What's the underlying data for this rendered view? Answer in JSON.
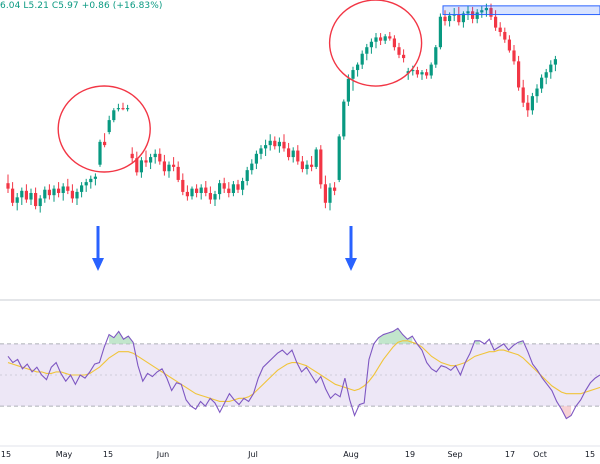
{
  "header": {
    "ohlc_readout": "6.04 L5.21 C5.97 +0.86 (+16.83%)"
  },
  "colors": {
    "up": "#089981",
    "down": "#f23645",
    "rsi_line": "#7e57c2",
    "rsi_ma": "#f0c43a",
    "rsi_band": "#ede7f6",
    "highlight_box": "#2962ff",
    "circle": "#f23645",
    "arrow": "#2962ff",
    "overbought_fill": "#b7e2c3",
    "oversold_fill": "#f6c9cc"
  },
  "chart_data": [
    {
      "type": "candlestick",
      "panel": "price",
      "y_range": [
        3.75,
        6.25
      ],
      "x_index_range": [
        0,
        129
      ],
      "candles": [
        {
          "o": 4.75,
          "h": 4.83,
          "l": 4.66,
          "c": 4.7
        },
        {
          "o": 4.7,
          "h": 4.76,
          "l": 4.54,
          "c": 4.57
        },
        {
          "o": 4.57,
          "h": 4.66,
          "l": 4.5,
          "c": 4.62
        },
        {
          "o": 4.62,
          "h": 4.71,
          "l": 4.55,
          "c": 4.68
        },
        {
          "o": 4.68,
          "h": 4.74,
          "l": 4.57,
          "c": 4.6
        },
        {
          "o": 4.6,
          "h": 4.7,
          "l": 4.55,
          "c": 4.66
        },
        {
          "o": 4.66,
          "h": 4.71,
          "l": 4.51,
          "c": 4.54
        },
        {
          "o": 4.54,
          "h": 4.64,
          "l": 4.48,
          "c": 4.61
        },
        {
          "o": 4.61,
          "h": 4.72,
          "l": 4.57,
          "c": 4.69
        },
        {
          "o": 4.69,
          "h": 4.74,
          "l": 4.6,
          "c": 4.64
        },
        {
          "o": 4.64,
          "h": 4.73,
          "l": 4.58,
          "c": 4.7
        },
        {
          "o": 4.7,
          "h": 4.76,
          "l": 4.62,
          "c": 4.66
        },
        {
          "o": 4.66,
          "h": 4.75,
          "l": 4.59,
          "c": 4.72
        },
        {
          "o": 4.72,
          "h": 4.79,
          "l": 4.65,
          "c": 4.68
        },
        {
          "o": 4.68,
          "h": 4.74,
          "l": 4.57,
          "c": 4.61
        },
        {
          "o": 4.61,
          "h": 4.7,
          "l": 4.55,
          "c": 4.67
        },
        {
          "o": 4.67,
          "h": 4.76,
          "l": 4.62,
          "c": 4.73
        },
        {
          "o": 4.73,
          "h": 4.79,
          "l": 4.67,
          "c": 4.76
        },
        {
          "o": 4.76,
          "h": 4.82,
          "l": 4.7,
          "c": 4.79
        },
        {
          "o": 4.79,
          "h": 4.84,
          "l": 4.73,
          "c": 4.81
        },
        {
          "o": 4.92,
          "h": 5.15,
          "l": 4.9,
          "c": 5.13
        },
        {
          "o": 5.13,
          "h": 5.21,
          "l": 5.08,
          "c": 5.1
        },
        {
          "o": 5.22,
          "h": 5.37,
          "l": 5.2,
          "c": 5.33
        },
        {
          "o": 5.33,
          "h": 5.44,
          "l": 5.31,
          "c": 5.42
        },
        {
          "o": 5.43,
          "h": 5.48,
          "l": 5.41,
          "c": 5.44
        },
        {
          "o": 5.44,
          "h": 5.49,
          "l": 5.42,
          "c": 5.43
        },
        {
          "o": 5.43,
          "h": 5.47,
          "l": 5.41,
          "c": 5.44
        },
        {
          "o": 5.02,
          "h": 5.08,
          "l": 4.93,
          "c": 4.98
        },
        {
          "o": 4.98,
          "h": 5.04,
          "l": 4.82,
          "c": 4.85
        },
        {
          "o": 4.85,
          "h": 4.99,
          "l": 4.8,
          "c": 4.96
        },
        {
          "o": 4.96,
          "h": 5.05,
          "l": 4.9,
          "c": 4.94
        },
        {
          "o": 4.94,
          "h": 5.02,
          "l": 4.88,
          "c": 4.99
        },
        {
          "o": 4.99,
          "h": 5.06,
          "l": 4.93,
          "c": 5.02
        },
        {
          "o": 5.02,
          "h": 5.07,
          "l": 4.92,
          "c": 4.95
        },
        {
          "o": 4.95,
          "h": 5.01,
          "l": 4.82,
          "c": 4.86
        },
        {
          "o": 4.86,
          "h": 4.95,
          "l": 4.8,
          "c": 4.92
        },
        {
          "o": 4.92,
          "h": 4.99,
          "l": 4.86,
          "c": 4.9
        },
        {
          "o": 4.9,
          "h": 4.95,
          "l": 4.76,
          "c": 4.78
        },
        {
          "o": 4.78,
          "h": 4.84,
          "l": 4.64,
          "c": 4.67
        },
        {
          "o": 4.67,
          "h": 4.73,
          "l": 4.59,
          "c": 4.63
        },
        {
          "o": 4.63,
          "h": 4.72,
          "l": 4.6,
          "c": 4.7
        },
        {
          "o": 4.7,
          "h": 4.74,
          "l": 4.62,
          "c": 4.66
        },
        {
          "o": 4.66,
          "h": 4.74,
          "l": 4.6,
          "c": 4.71
        },
        {
          "o": 4.71,
          "h": 4.77,
          "l": 4.63,
          "c": 4.66
        },
        {
          "o": 4.66,
          "h": 4.72,
          "l": 4.56,
          "c": 4.6
        },
        {
          "o": 4.6,
          "h": 4.68,
          "l": 4.54,
          "c": 4.65
        },
        {
          "o": 4.65,
          "h": 4.78,
          "l": 4.6,
          "c": 4.75
        },
        {
          "o": 4.75,
          "h": 4.8,
          "l": 4.66,
          "c": 4.7
        },
        {
          "o": 4.7,
          "h": 4.76,
          "l": 4.62,
          "c": 4.66
        },
        {
          "o": 4.66,
          "h": 4.77,
          "l": 4.63,
          "c": 4.74
        },
        {
          "o": 4.74,
          "h": 4.78,
          "l": 4.66,
          "c": 4.69
        },
        {
          "o": 4.69,
          "h": 4.8,
          "l": 4.64,
          "c": 4.77
        },
        {
          "o": 4.77,
          "h": 4.9,
          "l": 4.73,
          "c": 4.87
        },
        {
          "o": 4.87,
          "h": 4.97,
          "l": 4.83,
          "c": 4.93
        },
        {
          "o": 4.93,
          "h": 5.05,
          "l": 4.88,
          "c": 5.02
        },
        {
          "o": 5.02,
          "h": 5.1,
          "l": 4.97,
          "c": 5.07
        },
        {
          "o": 5.07,
          "h": 5.15,
          "l": 5.0,
          "c": 5.1
        },
        {
          "o": 5.1,
          "h": 5.2,
          "l": 5.05,
          "c": 5.14
        },
        {
          "o": 5.14,
          "h": 5.18,
          "l": 5.06,
          "c": 5.09
        },
        {
          "o": 5.09,
          "h": 5.17,
          "l": 5.03,
          "c": 5.13
        },
        {
          "o": 5.13,
          "h": 5.2,
          "l": 5.04,
          "c": 5.07
        },
        {
          "o": 5.07,
          "h": 5.12,
          "l": 4.96,
          "c": 4.99
        },
        {
          "o": 4.99,
          "h": 5.08,
          "l": 4.94,
          "c": 5.05
        },
        {
          "o": 5.05,
          "h": 5.1,
          "l": 4.92,
          "c": 4.95
        },
        {
          "o": 4.95,
          "h": 5.0,
          "l": 4.85,
          "c": 4.88
        },
        {
          "o": 4.88,
          "h": 4.96,
          "l": 4.83,
          "c": 4.92
        },
        {
          "o": 4.92,
          "h": 5.0,
          "l": 4.86,
          "c": 4.9
        },
        {
          "o": 4.9,
          "h": 5.08,
          "l": 4.88,
          "c": 5.06
        },
        {
          "o": 5.06,
          "h": 5.1,
          "l": 4.7,
          "c": 4.74
        },
        {
          "o": 4.74,
          "h": 4.82,
          "l": 4.52,
          "c": 4.57
        },
        {
          "o": 4.57,
          "h": 4.75,
          "l": 4.5,
          "c": 4.71
        },
        {
          "o": 4.71,
          "h": 4.76,
          "l": 4.64,
          "c": 4.68
        },
        {
          "o": 4.78,
          "h": 5.2,
          "l": 4.76,
          "c": 5.18
        },
        {
          "o": 5.18,
          "h": 5.52,
          "l": 5.15,
          "c": 5.5
        },
        {
          "o": 5.5,
          "h": 5.75,
          "l": 5.46,
          "c": 5.71
        },
        {
          "o": 5.71,
          "h": 5.82,
          "l": 5.6,
          "c": 5.79
        },
        {
          "o": 5.79,
          "h": 5.86,
          "l": 5.73,
          "c": 5.84
        },
        {
          "o": 5.84,
          "h": 5.97,
          "l": 5.8,
          "c": 5.94
        },
        {
          "o": 5.94,
          "h": 6.03,
          "l": 5.88,
          "c": 6.0
        },
        {
          "o": 6.0,
          "h": 6.08,
          "l": 5.94,
          "c": 6.05
        },
        {
          "o": 6.05,
          "h": 6.13,
          "l": 5.99,
          "c": 6.09
        },
        {
          "o": 6.09,
          "h": 6.13,
          "l": 6.02,
          "c": 6.06
        },
        {
          "o": 6.06,
          "h": 6.12,
          "l": 6.03,
          "c": 6.1
        },
        {
          "o": 6.1,
          "h": 6.14,
          "l": 6.06,
          "c": 6.08
        },
        {
          "o": 6.08,
          "h": 6.11,
          "l": 5.97,
          "c": 6.0
        },
        {
          "o": 6.0,
          "h": 6.04,
          "l": 5.9,
          "c": 5.93
        },
        {
          "o": 5.93,
          "h": 5.98,
          "l": 5.86,
          "c": 5.9
        },
        {
          "o": 5.76,
          "h": 5.81,
          "l": 5.7,
          "c": 5.78
        },
        {
          "o": 5.78,
          "h": 5.83,
          "l": 5.74,
          "c": 5.79
        },
        {
          "o": 5.79,
          "h": 5.82,
          "l": 5.72,
          "c": 5.75
        },
        {
          "o": 5.75,
          "h": 5.79,
          "l": 5.7,
          "c": 5.77
        },
        {
          "o": 5.77,
          "h": 5.8,
          "l": 5.71,
          "c": 5.74
        },
        {
          "o": 5.74,
          "h": 5.86,
          "l": 5.71,
          "c": 5.84
        },
        {
          "o": 5.84,
          "h": 6.02,
          "l": 5.81,
          "c": 6.0
        },
        {
          "o": 6.0,
          "h": 6.31,
          "l": 5.98,
          "c": 6.28
        },
        {
          "o": 6.28,
          "h": 6.34,
          "l": 6.2,
          "c": 6.24
        },
        {
          "o": 6.24,
          "h": 6.32,
          "l": 6.19,
          "c": 6.29
        },
        {
          "o": 6.29,
          "h": 6.36,
          "l": 6.24,
          "c": 6.3
        },
        {
          "o": 6.3,
          "h": 6.37,
          "l": 6.2,
          "c": 6.23
        },
        {
          "o": 6.23,
          "h": 6.33,
          "l": 6.18,
          "c": 6.31
        },
        {
          "o": 6.31,
          "h": 6.38,
          "l": 6.25,
          "c": 6.33
        },
        {
          "o": 6.33,
          "h": 6.37,
          "l": 6.22,
          "c": 6.26
        },
        {
          "o": 6.26,
          "h": 6.35,
          "l": 6.22,
          "c": 6.32
        },
        {
          "o": 6.32,
          "h": 6.38,
          "l": 6.27,
          "c": 6.34
        },
        {
          "o": 6.34,
          "h": 6.4,
          "l": 6.28,
          "c": 6.36
        },
        {
          "o": 6.36,
          "h": 6.4,
          "l": 6.25,
          "c": 6.28
        },
        {
          "o": 6.28,
          "h": 6.34,
          "l": 6.15,
          "c": 6.18
        },
        {
          "o": 6.18,
          "h": 6.23,
          "l": 6.1,
          "c": 6.14
        },
        {
          "o": 6.14,
          "h": 6.18,
          "l": 6.04,
          "c": 6.07
        },
        {
          "o": 6.07,
          "h": 6.11,
          "l": 5.95,
          "c": 5.97
        },
        {
          "o": 5.97,
          "h": 6.02,
          "l": 5.84,
          "c": 5.87
        },
        {
          "o": 5.87,
          "h": 5.92,
          "l": 5.6,
          "c": 5.63
        },
        {
          "o": 5.63,
          "h": 5.7,
          "l": 5.45,
          "c": 5.49
        },
        {
          "o": 5.49,
          "h": 5.56,
          "l": 5.36,
          "c": 5.42
        },
        {
          "o": 5.42,
          "h": 5.58,
          "l": 5.38,
          "c": 5.55
        },
        {
          "o": 5.55,
          "h": 5.66,
          "l": 5.49,
          "c": 5.62
        },
        {
          "o": 5.62,
          "h": 5.75,
          "l": 5.58,
          "c": 5.72
        },
        {
          "o": 5.72,
          "h": 5.8,
          "l": 5.66,
          "c": 5.77
        },
        {
          "o": 5.77,
          "h": 5.88,
          "l": 5.71,
          "c": 5.84
        },
        {
          "o": 5.84,
          "h": 5.92,
          "l": 5.78,
          "c": 5.89
        }
      ],
      "annotations": [
        {
          "kind": "circle",
          "label": "",
          "at_index": 22
        },
        {
          "kind": "circle",
          "label": "",
          "at_index": 81
        },
        {
          "kind": "arrow_down",
          "label": "",
          "at_index": 20
        },
        {
          "kind": "arrow_down",
          "label": "",
          "at_index": 75
        },
        {
          "kind": "resistance_box",
          "label": "",
          "from_index": 95,
          "to_index": 129,
          "y_top": 6.38,
          "y_bottom": 6.3
        }
      ]
    },
    {
      "type": "line",
      "panel": "rsi",
      "y_range": [
        5,
        95
      ],
      "band": [
        30,
        70
      ],
      "midline": 50,
      "series": [
        {
          "role": "rsi",
          "values": [
            62,
            58,
            60,
            54,
            57,
            52,
            55,
            50,
            47,
            55,
            58,
            51,
            46,
            50,
            44,
            50,
            48,
            52,
            57,
            58,
            68,
            76,
            74,
            78,
            73,
            75,
            71,
            56,
            46,
            51,
            49,
            52,
            54,
            48,
            40,
            45,
            44,
            34,
            30,
            28,
            33,
            30,
            35,
            32,
            26,
            32,
            38,
            34,
            31,
            35,
            33,
            38,
            48,
            55,
            58,
            61,
            64,
            66,
            63,
            66,
            58,
            52,
            55,
            50,
            45,
            49,
            41,
            35,
            38,
            36,
            48,
            34,
            24,
            31,
            32,
            60,
            70,
            74,
            76,
            77,
            78,
            80,
            76,
            73,
            75,
            70,
            66,
            58,
            54,
            52,
            56,
            55,
            53,
            56,
            50,
            58,
            64,
            72,
            72,
            70,
            73,
            66,
            68,
            70,
            66,
            69,
            71,
            72,
            65,
            57,
            53,
            48,
            44,
            40,
            33,
            28,
            22,
            24,
            30,
            34,
            40,
            45,
            48,
            50
          ]
        },
        {
          "role": "ma",
          "values": [
            58,
            57,
            56,
            55,
            54,
            53,
            52,
            52,
            51,
            51,
            52,
            52,
            51,
            50,
            50,
            50,
            50,
            51,
            53,
            55,
            58,
            61,
            63,
            65,
            65,
            65,
            64,
            62,
            60,
            58,
            56,
            54,
            52,
            50,
            48,
            46,
            44,
            42,
            40,
            38,
            37,
            36,
            35,
            34,
            33,
            33,
            33,
            34,
            35,
            35,
            36,
            38,
            41,
            44,
            47,
            50,
            53,
            55,
            57,
            58,
            58,
            57,
            56,
            54,
            52,
            50,
            48,
            46,
            44,
            43,
            42,
            41,
            40,
            41,
            43,
            46,
            50,
            55,
            60,
            64,
            68,
            71,
            72,
            72,
            71,
            70,
            68,
            65,
            62,
            60,
            58,
            57,
            56,
            56,
            57,
            58,
            60,
            62,
            63,
            64,
            65,
            65,
            66,
            66,
            65,
            64,
            63,
            61,
            58,
            55,
            52,
            49,
            46,
            43,
            41,
            39,
            38,
            38,
            38,
            38,
            39,
            40,
            41,
            42
          ]
        }
      ],
      "x_tick_labels": [
        "15",
        "May",
        "15",
        "Jun",
        "Jul",
        "Aug",
        "19",
        "Sep",
        "17",
        "Oct",
        "15"
      ]
    }
  ]
}
